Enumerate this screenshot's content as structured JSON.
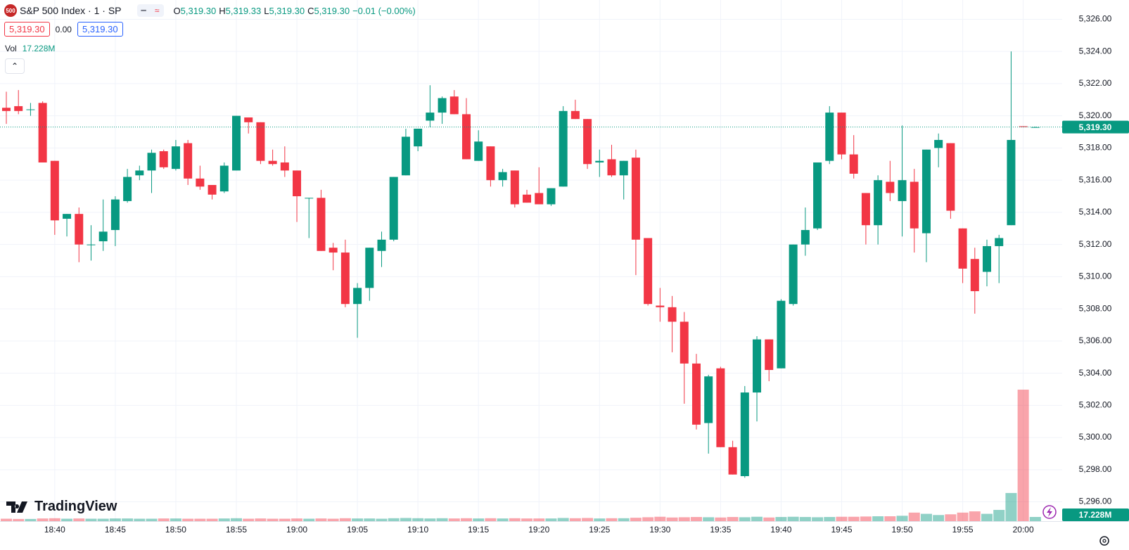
{
  "header": {
    "badge": "500",
    "symbol": "S&P 500 Index · 1 · SP",
    "ohlc": [
      {
        "k": "O",
        "v": "5,319.30"
      },
      {
        "k": "H",
        "v": "5,319.33"
      },
      {
        "k": "L",
        "v": "5,319.30"
      },
      {
        "k": "C",
        "v": "5,319.30"
      }
    ],
    "change": "−0.01 (−0.00%)",
    "bid": "5,319.30",
    "spread": "0.00",
    "ask": "5,319.30",
    "vol_label": "Vol"
  },
  "brand": "TradingView",
  "chart_data": {
    "type": "candlestick",
    "up_color": "#089981",
    "down_color": "#f23645",
    "grid": true,
    "x": [
      null,
      null,
      null,
      null,
      "18:40",
      null,
      null,
      null,
      null,
      "18:45",
      null,
      null,
      null,
      null,
      "18:50",
      null,
      null,
      null,
      null,
      "18:55",
      null,
      null,
      null,
      null,
      "19:00",
      null,
      null,
      null,
      null,
      "19:05",
      null,
      null,
      null,
      null,
      "19:10",
      null,
      null,
      null,
      null,
      "19:15",
      null,
      null,
      null,
      null,
      "19:20",
      null,
      null,
      null,
      null,
      "19:25",
      null,
      null,
      null,
      null,
      "19:30",
      null,
      null,
      null,
      null,
      "19:35",
      null,
      null,
      null,
      null,
      "19:40",
      null,
      null,
      null,
      null,
      "19:45",
      null,
      null,
      null,
      null,
      "19:50",
      null,
      null,
      null,
      null,
      "19:55",
      null,
      null,
      null,
      null,
      "20:00",
      null
    ],
    "open": [
      5320.5,
      5320.6,
      5320.4,
      5320.8,
      5317.2,
      5313.6,
      5313.9,
      5312.0,
      5312.2,
      5312.9,
      5314.7,
      5316.3,
      5316.6,
      5317.8,
      5316.7,
      5318.3,
      5316.1,
      5315.7,
      5315.3,
      5316.6,
      5319.9,
      5319.6,
      5317.2,
      5317.1,
      5316.6,
      5314.9,
      5314.9,
      5311.8,
      5311.5,
      5308.3,
      5309.3,
      5311.6,
      5312.3,
      5316.3,
      5318.1,
      5319.7,
      5320.2,
      5321.2,
      5320.1,
      5317.2,
      5318.1,
      5316.0,
      5316.6,
      5315.1,
      5315.2,
      5314.5,
      5315.6,
      5320.3,
      5319.8,
      5317.1,
      5317.3,
      5316.3,
      5317.4,
      5312.4,
      5308.2,
      5308.1,
      5307.2,
      5304.6,
      5300.9,
      5304.3,
      5299.4,
      5297.6,
      5302.8,
      5306.1,
      5304.3,
      5308.3,
      5312.0,
      5313.0,
      5317.2,
      5320.2,
      5317.6,
      5315.2,
      5313.2,
      5315.9,
      5314.7,
      5315.9,
      5312.7,
      5318.0,
      5318.3,
      5313.0,
      5311.1,
      5310.3,
      5311.9,
      5313.2,
      5319.35,
      5319.3
    ],
    "high": [
      5321.5,
      5321.6,
      5320.8,
      5320.9,
      5317.2,
      5313.9,
      5314.3,
      5313.2,
      5314.8,
      5315.0,
      5316.7,
      5316.9,
      5317.9,
      5317.9,
      5318.5,
      5318.5,
      5316.9,
      5315.7,
      5317.1,
      5320.0,
      5319.9,
      5319.6,
      5317.9,
      5318.1,
      5316.6,
      5314.9,
      5315.4,
      5312.1,
      5312.3,
      5309.6,
      5311.8,
      5312.8,
      5316.2,
      5319.2,
      5319.2,
      5321.9,
      5321.2,
      5321.6,
      5321.1,
      5319.1,
      5318.1,
      5316.7,
      5316.6,
      5315.4,
      5316.8,
      5315.5,
      5320.6,
      5321.0,
      5319.8,
      5317.9,
      5318.2,
      5317.2,
      5317.9,
      5312.4,
      5309.3,
      5308.8,
      5307.8,
      5305.2,
      5303.9,
      5304.4,
      5299.8,
      5303.2,
      5306.3,
      5306.1,
      5308.6,
      5312.0,
      5314.3,
      5317.1,
      5320.6,
      5320.2,
      5318.8,
      5315.2,
      5316.3,
      5317.2,
      5319.4,
      5316.7,
      5317.9,
      5318.9,
      5318.3,
      5313.0,
      5311.8,
      5312.3,
      5312.6,
      5324.0,
      5319.35,
      5319.33
    ],
    "low": [
      5319.5,
      5320.1,
      5320.0,
      5317.1,
      5312.6,
      5312.5,
      5310.9,
      5311.0,
      5311.6,
      5311.9,
      5314.6,
      5316.0,
      5315.2,
      5316.7,
      5316.6,
      5315.7,
      5315.4,
      5314.8,
      5315.2,
      5316.6,
      5318.9,
      5317.0,
      5316.9,
      5316.2,
      5313.4,
      5312.4,
      5311.6,
      5310.4,
      5308.1,
      5306.2,
      5308.5,
      5310.6,
      5312.2,
      5316.3,
      5317.8,
      5319.3,
      5319.5,
      5320.1,
      5317.3,
      5317.2,
      5315.6,
      5315.6,
      5314.3,
      5314.6,
      5314.5,
      5314.4,
      5315.6,
      5319.8,
      5316.7,
      5316.2,
      5316.2,
      5314.8,
      5310.1,
      5308.2,
      5307.2,
      5305.3,
      5302.1,
      5300.5,
      5299.0,
      5299.4,
      5297.7,
      5297.5,
      5301.0,
      5303.5,
      5304.3,
      5308.2,
      5311.3,
      5312.9,
      5317.0,
      5317.3,
      5316.1,
      5312.0,
      5312.0,
      5314.7,
      5312.5,
      5311.5,
      5310.9,
      5316.8,
      5313.6,
      5309.6,
      5307.7,
      5309.4,
      5309.6,
      5313.2,
      5319.3,
      5319.3
    ],
    "close": [
      5320.3,
      5320.3,
      5320.4,
      5317.1,
      5313.5,
      5313.9,
      5312.0,
      5312.0,
      5312.8,
      5314.8,
      5316.2,
      5316.6,
      5317.7,
      5316.8,
      5318.1,
      5316.1,
      5315.6,
      5315.1,
      5316.9,
      5320.0,
      5319.6,
      5317.2,
      5317.0,
      5316.6,
      5315.0,
      5314.9,
      5311.6,
      5311.5,
      5308.3,
      5309.3,
      5311.8,
      5312.3,
      5316.2,
      5318.7,
      5319.2,
      5320.2,
      5321.1,
      5320.1,
      5317.3,
      5318.4,
      5316.0,
      5316.5,
      5314.5,
      5314.6,
      5314.5,
      5315.5,
      5320.3,
      5319.8,
      5317.0,
      5317.2,
      5316.3,
      5317.2,
      5312.3,
      5308.3,
      5308.1,
      5307.2,
      5304.6,
      5300.8,
      5303.8,
      5299.4,
      5297.7,
      5302.8,
      5306.1,
      5304.2,
      5308.5,
      5312.0,
      5312.9,
      5317.1,
      5320.2,
      5317.6,
      5316.4,
      5313.2,
      5316.0,
      5315.2,
      5316.0,
      5313.0,
      5317.9,
      5318.5,
      5314.1,
      5310.5,
      5309.1,
      5311.9,
      5312.4,
      5318.5,
      5319.3,
      5319.3
    ],
    "volume": {
      "values": [
        10,
        9,
        9,
        11,
        12,
        10,
        11,
        10,
        10,
        11,
        11,
        10,
        10,
        11,
        11,
        10,
        10,
        10,
        11,
        12,
        10,
        11,
        10,
        10,
        11,
        10,
        11,
        10,
        12,
        11,
        11,
        10,
        12,
        13,
        12,
        11,
        12,
        11,
        12,
        11,
        12,
        11,
        12,
        11,
        11,
        11,
        13,
        12,
        13,
        11,
        12,
        12,
        14,
        16,
        18,
        15,
        16,
        17,
        16,
        15,
        17,
        16,
        18,
        15,
        17,
        18,
        17,
        16,
        17,
        18,
        18,
        19,
        20,
        20,
        22,
        35,
        30,
        25,
        28,
        35,
        40,
        30,
        46,
        115,
        537,
        17.228
      ],
      "last_label": "17.228M"
    },
    "last_price": {
      "value": 5319.3,
      "label": "5,319.30"
    },
    "ylim": [
      5294.8,
      5327.2
    ],
    "yticks": [
      {
        "value": 5296,
        "label": "5,296.00"
      },
      {
        "value": 5298,
        "label": "5,298.00"
      },
      {
        "value": 5300,
        "label": "5,300.00"
      },
      {
        "value": 5302,
        "label": "5,302.00"
      },
      {
        "value": 5304,
        "label": "5,304.00"
      },
      {
        "value": 5306,
        "label": "5,306.00"
      },
      {
        "value": 5308,
        "label": "5,308.00"
      },
      {
        "value": 5310,
        "label": "5,310.00"
      },
      {
        "value": 5312,
        "label": "5,312.00"
      },
      {
        "value": 5314,
        "label": "5,314.00"
      },
      {
        "value": 5316,
        "label": "5,316.00"
      },
      {
        "value": 5318,
        "label": "5,318.00"
      },
      {
        "value": 5320,
        "label": "5,320.00"
      },
      {
        "value": 5322,
        "label": "5,322.00"
      },
      {
        "value": 5324,
        "label": "5,324.00"
      },
      {
        "value": 5326,
        "label": "5,326.00"
      }
    ]
  }
}
